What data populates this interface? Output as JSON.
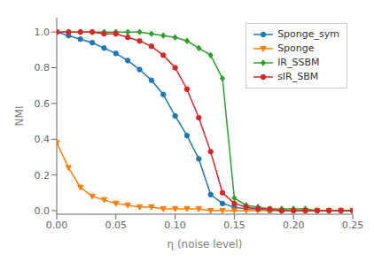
{
  "chart_data": {
    "type": "line",
    "title": "",
    "xlabel": "η (noise level)",
    "ylabel": "NMI",
    "x": [
      0.0,
      0.01,
      0.02,
      0.03,
      0.04,
      0.05,
      0.06,
      0.07,
      0.08,
      0.09,
      0.1,
      0.11,
      0.12,
      0.13,
      0.14,
      0.15,
      0.16,
      0.17,
      0.18,
      0.19,
      0.2,
      0.21,
      0.22,
      0.23,
      0.24,
      0.25
    ],
    "series": [
      {
        "name": "Sponge_sym",
        "color": "#1f77b4",
        "marker": "circle",
        "values": [
          1.0,
          0.98,
          0.96,
          0.94,
          0.91,
          0.88,
          0.84,
          0.79,
          0.73,
          0.65,
          0.53,
          0.42,
          0.29,
          0.09,
          0.04,
          0.02,
          0.01,
          0.01,
          0.0,
          0.0,
          0.0,
          0.0,
          0.0,
          0.0,
          0.0,
          0.0
        ]
      },
      {
        "name": "Sponge",
        "color": "#ff7f0e",
        "marker": "triangle-down",
        "values": [
          0.38,
          0.24,
          0.13,
          0.08,
          0.06,
          0.04,
          0.03,
          0.02,
          0.02,
          0.01,
          0.01,
          0.01,
          0.01,
          0.0,
          0.0,
          0.0,
          0.0,
          0.0,
          0.0,
          0.0,
          0.0,
          0.0,
          0.0,
          0.0,
          0.0,
          0.0
        ]
      },
      {
        "name": "IR_SSBM",
        "color": "#2ca02c",
        "marker": "diamond",
        "values": [
          1.0,
          1.0,
          1.0,
          1.0,
          1.0,
          1.0,
          1.0,
          1.0,
          0.99,
          0.98,
          0.97,
          0.95,
          0.91,
          0.87,
          0.74,
          0.07,
          0.03,
          0.02,
          0.01,
          0.01,
          0.01,
          0.01,
          0.0,
          0.0,
          0.0,
          0.0
        ]
      },
      {
        "name": "sIR_SBM",
        "color": "#d62728",
        "marker": "circle",
        "values": [
          1.0,
          1.0,
          1.0,
          1.0,
          0.99,
          0.99,
          0.97,
          0.95,
          0.92,
          0.87,
          0.8,
          0.68,
          0.52,
          0.33,
          0.1,
          0.04,
          0.02,
          0.01,
          0.01,
          0.0,
          0.0,
          0.0,
          0.0,
          0.0,
          0.0,
          0.0
        ]
      }
    ],
    "xlim": [
      0.0,
      0.25
    ],
    "ylim": [
      -0.02,
      1.08
    ],
    "xticks": [
      {
        "value": 0.0,
        "label": "0.00"
      },
      {
        "value": 0.05,
        "label": "0.05"
      },
      {
        "value": 0.1,
        "label": "0.10"
      },
      {
        "value": 0.15,
        "label": "0.15"
      },
      {
        "value": 0.2,
        "label": "0.20"
      },
      {
        "value": 0.25,
        "label": "0.25"
      }
    ],
    "yticks": [
      {
        "value": 0,
        "label": "0.0"
      },
      {
        "value": 0.2,
        "label": "0.2"
      },
      {
        "value": 0.4,
        "label": "0.4"
      },
      {
        "value": 0.6,
        "label": "0.6"
      },
      {
        "value": 0.8,
        "label": "0.8"
      },
      {
        "value": 1.0,
        "label": "1.0"
      }
    ],
    "grid": false,
    "legend": "upper right"
  }
}
